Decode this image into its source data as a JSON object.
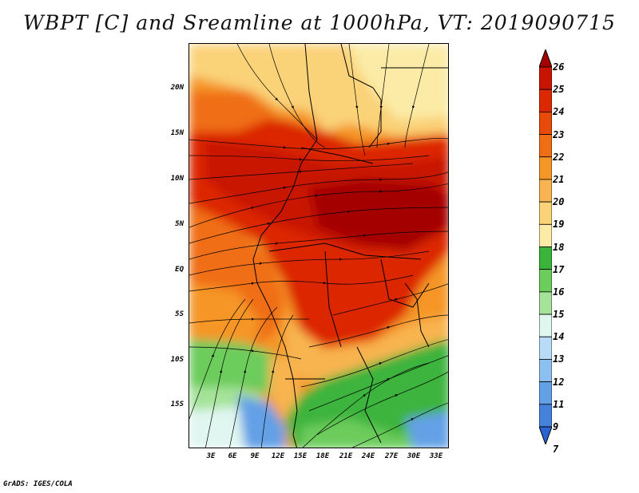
{
  "title": "WBPT [C] and Sreamline at 1000hPa, VT: 2019090715",
  "footer": "GrADS: IGES/COLA",
  "lat_labels": [
    "20N",
    "15N",
    "10N",
    "5N",
    "EQ",
    "5S",
    "10S",
    "15S"
  ],
  "lon_labels": [
    "3E",
    "6E",
    "9E",
    "12E",
    "15E",
    "18E",
    "21E",
    "24E",
    "27E",
    "30E",
    "33E"
  ],
  "colorbar": {
    "labels": [
      "26",
      "25",
      "24",
      "23",
      "22",
      "21",
      "20",
      "19",
      "18",
      "17",
      "16",
      "15",
      "14",
      "13",
      "12",
      "11",
      "9",
      "7"
    ],
    "colors": [
      "#a50000",
      "#c81400",
      "#dc2800",
      "#e84a0a",
      "#f06e14",
      "#f59628",
      "#f8b450",
      "#fad278",
      "#fbeba6",
      "#3cb43c",
      "#6ccc5c",
      "#a6e39a",
      "#e0f6f0",
      "#b8dcf8",
      "#8cc0f0",
      "#64a0e6",
      "#4682dc",
      "#2a64d2"
    ]
  }
}
